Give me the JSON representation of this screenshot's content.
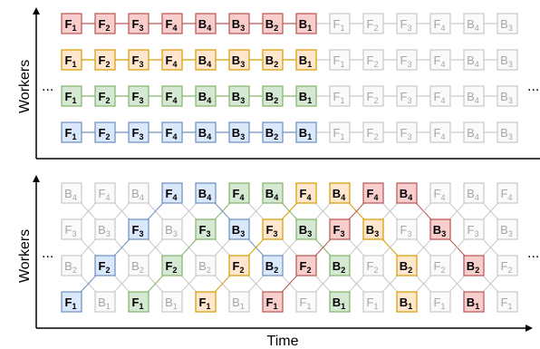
{
  "axis_labels": {
    "y_top": "Workers",
    "y_bottom": "Workers",
    "x_bottom": "Time"
  },
  "ellipsis": "...",
  "colors": {
    "red": {
      "fill": "#f8cecc",
      "stroke": "#b85450"
    },
    "orange": {
      "fill": "#ffe6cc",
      "stroke": "#d79b00"
    },
    "green": {
      "fill": "#d5e8d4",
      "stroke": "#82b366"
    },
    "blue": {
      "fill": "#dae8fc",
      "stroke": "#6c8ebf"
    },
    "gray": {
      "fill": "#fafafa",
      "stroke": "#c8c8c8",
      "text": "#a6a6a6"
    }
  },
  "top_panel": {
    "rows": [
      {
        "color": "red",
        "items": [
          [
            "F",
            "1"
          ],
          [
            "F",
            "2"
          ],
          [
            "F",
            "3"
          ],
          [
            "F",
            "4"
          ],
          [
            "B",
            "4"
          ],
          [
            "B",
            "3"
          ],
          [
            "B",
            "2"
          ],
          [
            "B",
            "1"
          ]
        ]
      },
      {
        "color": "orange",
        "items": [
          [
            "F",
            "1"
          ],
          [
            "F",
            "2"
          ],
          [
            "F",
            "3"
          ],
          [
            "F",
            "4"
          ],
          [
            "B",
            "4"
          ],
          [
            "B",
            "3"
          ],
          [
            "B",
            "2"
          ],
          [
            "B",
            "1"
          ]
        ]
      },
      {
        "color": "green",
        "items": [
          [
            "F",
            "1"
          ],
          [
            "F",
            "2"
          ],
          [
            "F",
            "3"
          ],
          [
            "F",
            "4"
          ],
          [
            "B",
            "4"
          ],
          [
            "B",
            "3"
          ],
          [
            "B",
            "2"
          ],
          [
            "B",
            "1"
          ]
        ]
      },
      {
        "color": "blue",
        "items": [
          [
            "F",
            "1"
          ],
          [
            "F",
            "2"
          ],
          [
            "F",
            "3"
          ],
          [
            "F",
            "4"
          ],
          [
            "B",
            "4"
          ],
          [
            "B",
            "3"
          ],
          [
            "B",
            "2"
          ],
          [
            "B",
            "1"
          ]
        ]
      }
    ],
    "ghost_items": [
      [
        "F",
        "1"
      ],
      [
        "F",
        "2"
      ],
      [
        "F",
        "3"
      ],
      [
        "F",
        "4"
      ],
      [
        "B",
        "4"
      ],
      [
        "B",
        "3"
      ]
    ]
  },
  "bottom_panel": {
    "rows": [
      [
        "gray:B:4",
        "gray:F:4",
        "gray:B:4",
        "blue:F:4",
        "blue:B:4",
        "green:F:4",
        "green:B:4",
        "orange:F:4",
        "orange:B:4",
        "red:F:4",
        "red:B:4",
        "gray:F:4",
        "gray:B:4",
        "gray:F:4"
      ],
      [
        "gray:F:3",
        "gray:B:3",
        "blue:F:3",
        "gray:B:3",
        "green:F:3",
        "blue:B:3",
        "orange:F:3",
        "green:B:3",
        "red:F:3",
        "orange:B:3",
        "gray:F:3",
        "red:B:3",
        "gray:F:3",
        "gray:B:3"
      ],
      [
        "gray:B:2",
        "blue:F:2",
        "gray:B:2",
        "green:F:2",
        "gray:B:2",
        "orange:F:2",
        "blue:B:2",
        "red:F:2",
        "green:B:2",
        "gray:F:2",
        "orange:B:2",
        "gray:F:2",
        "red:B:2",
        "gray:F:2"
      ],
      [
        "blue:F:1",
        "gray:B:1",
        "green:F:1",
        "gray:B:1",
        "orange:F:1",
        "gray:B:1",
        "red:F:1",
        "gray:F:1",
        "green:B:1",
        "gray:F:1",
        "orange:B:1",
        "gray:F:1",
        "red:B:1",
        "gray:F:1"
      ]
    ]
  }
}
